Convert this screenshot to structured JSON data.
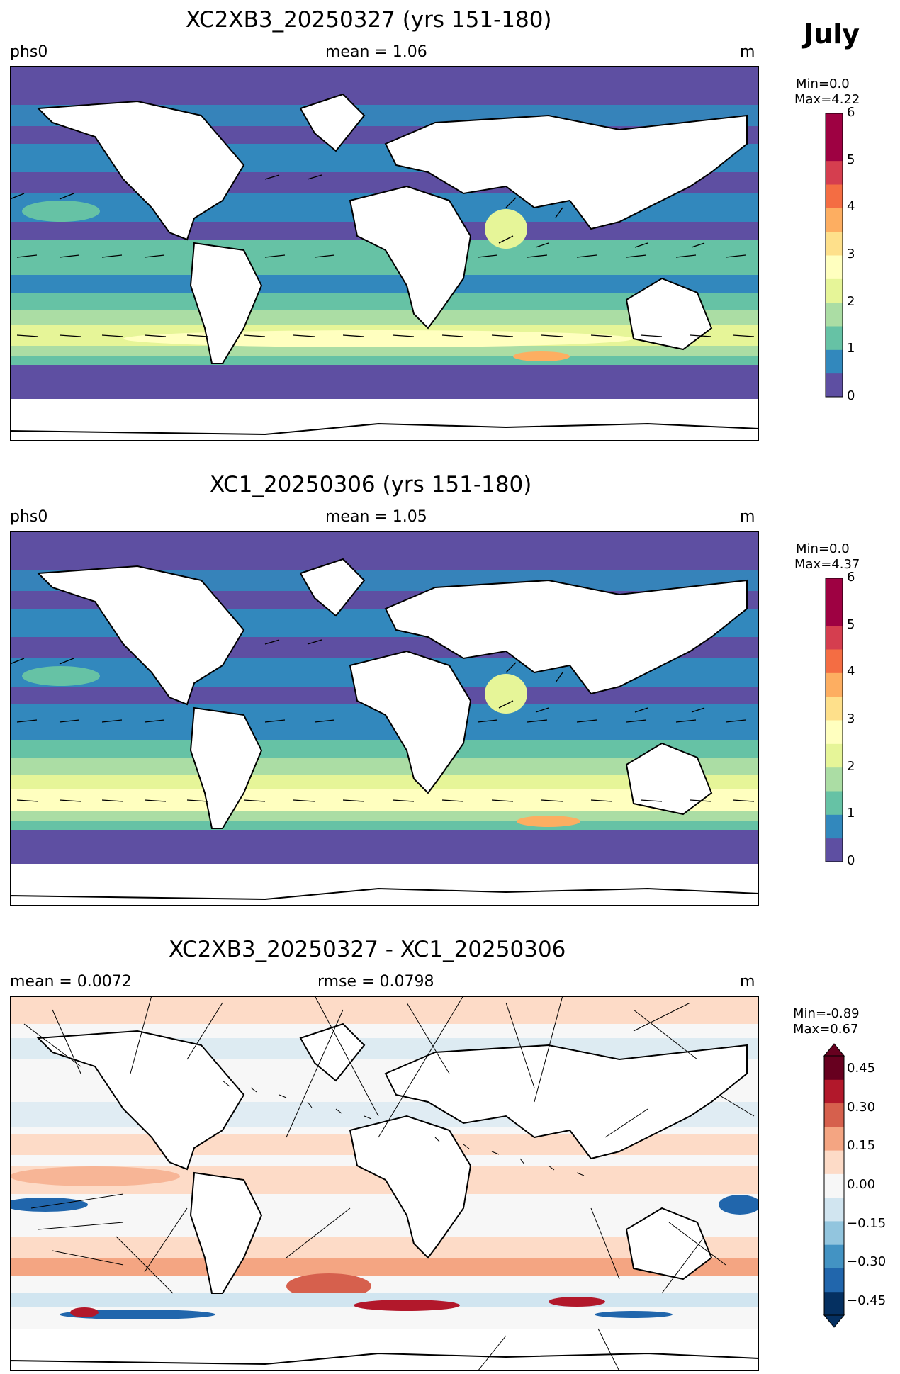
{
  "month": "July",
  "panels": [
    {
      "title": "XC2XB3_20250327 (yrs 151-180)",
      "left_label": "phs0",
      "center_label": "mean = 1.06",
      "right_label": "m",
      "colorbar": {
        "min_label": "Min=0.0",
        "max_label": "Max=4.22",
        "ticks": [
          "0",
          "1",
          "2",
          "3",
          "4",
          "5",
          "6"
        ],
        "tick_values": [
          0,
          1,
          2,
          3,
          4,
          5,
          6
        ],
        "range": [
          0,
          6
        ],
        "colors": [
          "#5e4fa2",
          "#3288bd",
          "#66c2a5",
          "#abdda4",
          "#e6f598",
          "#ffffbf",
          "#fee08b",
          "#fdae61",
          "#f46d43",
          "#d53e4f",
          "#9e0142",
          "#9e0142"
        ]
      }
    },
    {
      "title": "XC1_20250306 (yrs 151-180)",
      "left_label": "phs0",
      "center_label": "mean = 1.05",
      "right_label": "m",
      "colorbar": {
        "min_label": "Min=0.0",
        "max_label": "Max=4.37",
        "ticks": [
          "0",
          "1",
          "2",
          "3",
          "4",
          "5",
          "6"
        ],
        "tick_values": [
          0,
          1,
          2,
          3,
          4,
          5,
          6
        ],
        "range": [
          0,
          6
        ],
        "colors": [
          "#5e4fa2",
          "#3288bd",
          "#66c2a5",
          "#abdda4",
          "#e6f598",
          "#ffffbf",
          "#fee08b",
          "#fdae61",
          "#f46d43",
          "#d53e4f",
          "#9e0142",
          "#9e0142"
        ]
      }
    },
    {
      "title": "XC2XB3_20250327 - XC1_20250306",
      "left_label": "mean = 0.0072",
      "center_label": "rmse = 0.0798",
      "right_label": "m",
      "colorbar": {
        "min_label": "Min=-0.89",
        "max_label": "Max=0.67",
        "ticks": [
          "0.45",
          "0.30",
          "0.15",
          "0.00",
          "−0.15",
          "−0.30",
          "−0.45"
        ],
        "tick_values": [
          0.45,
          0.3,
          0.15,
          0.0,
          -0.15,
          -0.3,
          -0.45
        ],
        "range": [
          -0.5,
          0.5
        ],
        "colors": [
          "#053061",
          "#2166ac",
          "#4393c3",
          "#92c5de",
          "#d1e5f0",
          "#f7f7f7",
          "#fddbc7",
          "#f4a582",
          "#d6604d",
          "#b2182b",
          "#67001f"
        ]
      }
    }
  ]
}
